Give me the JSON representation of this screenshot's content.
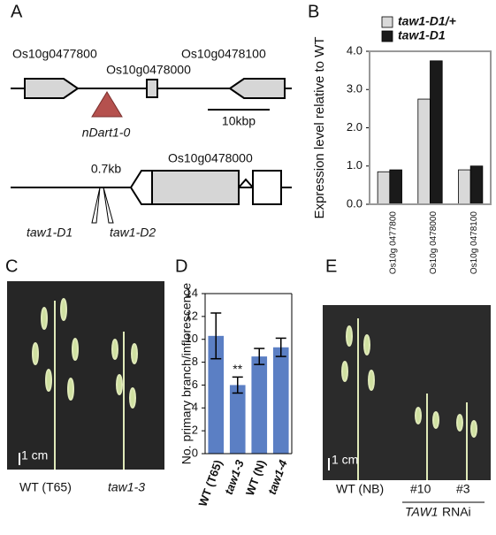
{
  "panel_labels": [
    "A",
    "B",
    "C",
    "D",
    "E"
  ],
  "diagram": {
    "row1": {
      "gene_left": "Os10g0477800",
      "gene_right": "Os10g0478100",
      "gene_mid": "Os10g0478000",
      "insertion": "nDart1-0",
      "scale": "10kbp"
    },
    "row2": {
      "distance": "0.7kb",
      "gene": "Os10g0478000",
      "allele1": "taw1-D1",
      "allele2": "taw1-D2"
    }
  },
  "chart_data": [
    {
      "type": "bar",
      "ylabel": "Expression level relative to WT",
      "categories": [
        "Os10g 0477800",
        "Os10g 0478000",
        "Os10g 0478100"
      ],
      "series": [
        {
          "name": "taw1-D1/+",
          "color": "#d9d9d9",
          "values": [
            0.85,
            2.75,
            0.9
          ]
        },
        {
          "name": "taw1-D1",
          "color": "#1a1a1a",
          "values": [
            0.9,
            3.75,
            1.0
          ]
        }
      ],
      "ylim": [
        0,
        4
      ],
      "yticks": [
        {
          "value": 0,
          "label": "0.0"
        },
        {
          "value": 1,
          "label": "1.0"
        },
        {
          "value": 2,
          "label": "2.0"
        },
        {
          "value": 3,
          "label": "3.0"
        },
        {
          "value": 4,
          "label": "4.0"
        }
      ],
      "legend": "top-left"
    },
    {
      "type": "bar",
      "ylabel": "No. primary branch/inflorescence",
      "categories": [
        "WT (T65)",
        "taw1-3",
        "WT (N)",
        "taw1-4"
      ],
      "values": [
        10.3,
        6.0,
        8.5,
        9.3
      ],
      "errors": [
        2.0,
        0.7,
        0.7,
        0.8
      ],
      "color": "#5b7fc4",
      "annotations": [
        {
          "category": 1,
          "text": "**"
        }
      ],
      "ylim": [
        0,
        14
      ],
      "yticks": [
        0,
        2,
        4,
        6,
        8,
        10,
        12,
        14
      ]
    }
  ],
  "photos": {
    "C": {
      "scale": "1 cm",
      "left": "WT (T65)",
      "right": "taw1-3"
    },
    "E": {
      "scale": "1 cm",
      "left": "WT (NB)",
      "line1": "#10",
      "line2": "#3",
      "gene": "TAW1",
      "suffix": "RNAi"
    }
  }
}
